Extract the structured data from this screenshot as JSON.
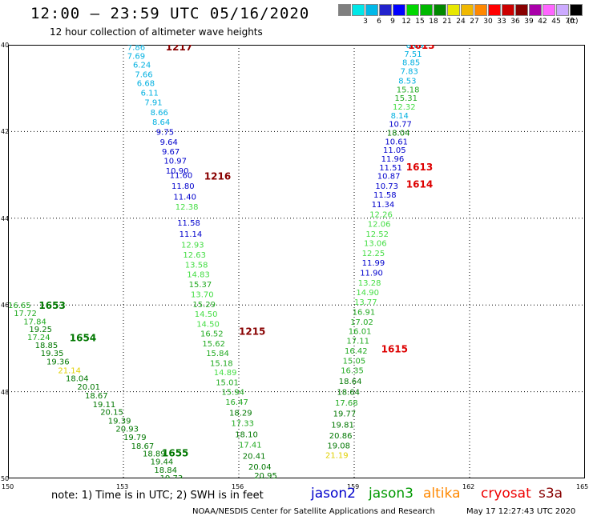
{
  "title": "12:00 – 23:59 UTC 05/16/2020",
  "subtitle": "12 hour collection of altimeter wave heights",
  "legend": {
    "colors": [
      "#7f7f7f",
      "#00e8e8",
      "#00b8e8",
      "#2222cc",
      "#0000ff",
      "#00d700",
      "#00b800",
      "#008800",
      "#e8e800",
      "#f0b800",
      "#ff8800",
      "#ff0000",
      "#cc0000",
      "#880000",
      "#aa00aa",
      "#ff66ff",
      "#ccaaff",
      "#000000"
    ],
    "values": [
      "3",
      "6",
      "9",
      "12",
      "15",
      "18",
      "21",
      "24",
      "27",
      "30",
      "33",
      "36",
      "39",
      "42",
      "45",
      "70"
    ],
    "unit": "(ft)"
  },
  "axes": {
    "lon_labels": [
      "150",
      "153",
      "156",
      "159",
      "162",
      "165"
    ],
    "lat_labels": [
      "40",
      "42",
      "44",
      "46",
      "48",
      "50"
    ]
  },
  "note": "note: 1) Time is in UTC; 2) SWH is in feet",
  "satellites": [
    {
      "name": "jason2",
      "color": "#0000cc"
    },
    {
      "name": "jason3",
      "color": "#009900"
    },
    {
      "name": "altika",
      "color": "#ff8800"
    },
    {
      "name": "cryosat",
      "color": "#ee0000"
    },
    {
      "name": "s3a",
      "color": "#880000"
    }
  ],
  "footer": "NOAA/NESDIS Center for Satellite Applications and Research",
  "timestamp": "May 17 12:27:43 UTC 2020",
  "tracks": [
    {
      "label": "1217",
      "label_lon": 154.1,
      "label_lat": 40.04,
      "label_color": "#880000",
      "color": "#00a0d0",
      "points": [
        [
          153.1,
          40.05,
          "7.86"
        ],
        [
          153.1,
          40.25,
          "7.69"
        ],
        [
          153.25,
          40.45,
          "6.24"
        ],
        [
          153.3,
          40.67,
          "7.66"
        ],
        [
          153.35,
          40.88,
          "6.68"
        ],
        [
          153.45,
          41.1,
          "6.11"
        ],
        [
          153.55,
          41.32,
          "7.91"
        ],
        [
          153.7,
          41.55,
          "8.66"
        ],
        [
          153.75,
          41.77,
          "8.64"
        ]
      ]
    },
    {
      "label": "",
      "label_lon": 0,
      "label_lat": 0,
      "label_color": "#000",
      "color": "#0000bb",
      "points": [
        [
          153.85,
          42.0,
          "9.75"
        ],
        [
          153.95,
          42.23,
          "9.64"
        ],
        [
          154.0,
          42.45,
          "9.67"
        ],
        [
          154.05,
          42.67,
          "10.97"
        ],
        [
          154.1,
          42.9,
          "10.90"
        ],
        [
          154.2,
          43.0,
          "11.60"
        ],
        [
          154.25,
          43.25,
          "11.80"
        ],
        [
          154.3,
          43.5,
          "11.40"
        ]
      ]
    },
    {
      "label": "1216",
      "label_lon": 155.1,
      "label_lat": 43.02,
      "label_color": "#880000",
      "color": "#55e055",
      "points": [
        [
          154.35,
          43.73,
          "12.38"
        ],
        [
          154.4,
          44.1,
          "11.58"
        ],
        [
          154.45,
          44.35,
          "11.14"
        ],
        [
          154.5,
          44.6,
          "12.93"
        ],
        [
          154.55,
          44.83,
          "12.63"
        ],
        [
          154.6,
          45.06,
          "13.58"
        ],
        [
          154.65,
          45.29,
          "14.83"
        ],
        [
          154.7,
          45.52,
          "15.37"
        ],
        [
          154.75,
          45.75,
          "13.70"
        ],
        [
          154.8,
          45.98,
          "15.29"
        ],
        [
          154.85,
          46.2,
          "14.50"
        ],
        [
          154.9,
          46.43,
          "14.50"
        ]
      ]
    },
    {
      "label": "1215",
      "label_lon": 156.0,
      "label_lat": 46.6,
      "label_color": "#880000",
      "color": "#22aa22",
      "points": [
        [
          155.0,
          46.65,
          "16.52"
        ],
        [
          155.05,
          46.88,
          "15.62"
        ],
        [
          155.15,
          47.1,
          "15.84"
        ],
        [
          155.25,
          47.33,
          "15.18"
        ],
        [
          155.35,
          47.55,
          "14.89"
        ],
        [
          155.4,
          47.78,
          "15.01"
        ],
        [
          155.55,
          48.0,
          "15.94"
        ],
        [
          155.65,
          48.23,
          "16.47"
        ],
        [
          155.75,
          48.48,
          "18.29"
        ],
        [
          155.8,
          48.72,
          "17.33"
        ],
        [
          155.9,
          48.98,
          "18.10"
        ],
        [
          156.0,
          49.22,
          "17.41"
        ],
        [
          156.1,
          49.47,
          "20.41"
        ],
        [
          156.25,
          49.72,
          "20.04"
        ],
        [
          156.4,
          49.93,
          "20.95"
        ]
      ]
    },
    {
      "label": "1653",
      "label_lon": 150.8,
      "label_lat": 46.0,
      "label_color": "#007700",
      "color": "#22aa22",
      "points": [
        [
          150.0,
          46.0,
          "16.65"
        ],
        [
          150.15,
          46.18,
          "17.72"
        ],
        [
          150.4,
          46.37,
          "17.84"
        ],
        [
          150.55,
          46.55,
          "19.25"
        ],
        [
          150.5,
          46.73,
          "17.24"
        ],
        [
          150.7,
          46.92,
          "18.85"
        ],
        [
          150.85,
          47.1,
          "19.35"
        ],
        [
          151.0,
          47.3,
          "19.36"
        ],
        [
          151.3,
          47.5,
          "21.14"
        ],
        [
          151.5,
          47.68,
          "18.04"
        ],
        [
          151.8,
          47.88,
          "20.01"
        ],
        [
          152.0,
          48.08,
          "18.67"
        ],
        [
          152.2,
          48.28,
          "19.11"
        ],
        [
          152.4,
          48.46,
          "20.15"
        ],
        [
          152.6,
          48.66,
          "19.39"
        ],
        [
          152.8,
          48.85,
          "20.93"
        ],
        [
          153.0,
          49.04,
          "19.79"
        ],
        [
          153.2,
          49.24,
          "18.67"
        ],
        [
          153.5,
          49.42,
          "18.89"
        ],
        [
          153.7,
          49.6,
          "19.44"
        ],
        [
          153.8,
          49.8,
          "18.84"
        ],
        [
          153.95,
          49.98,
          "19.73"
        ],
        [
          154.1,
          50.17,
          "19.09"
        ],
        [
          154.25,
          50.37,
          "22.15"
        ]
      ]
    },
    {
      "label": "1654",
      "label_lon": 151.6,
      "label_lat": 46.74,
      "label_color": "#007700",
      "color": "#22aa22",
      "points": []
    },
    {
      "label": "1655",
      "label_lon": 154.0,
      "label_lat": 49.4,
      "label_color": "#007700",
      "color": "#22aa22",
      "points": []
    },
    {
      "label": "1613",
      "label_lon": 160.4,
      "label_lat": 40.0,
      "label_color": "#dd0000",
      "color": "#00a0d0",
      "points": [
        [
          160.35,
          40.0,
          "8.89"
        ],
        [
          160.3,
          40.2,
          "7.51"
        ],
        [
          160.25,
          40.4,
          "8.85"
        ],
        [
          160.2,
          40.6,
          "7.83"
        ],
        [
          160.15,
          40.82,
          "8.53"
        ]
      ]
    },
    {
      "label": "",
      "label_lon": 0,
      "label_lat": 0,
      "label_color": "#000",
      "color": "#22aa22",
      "points": [
        [
          160.1,
          41.02,
          "15.18"
        ],
        [
          160.05,
          41.22,
          "15.31"
        ],
        [
          160.0,
          41.42,
          "12.32"
        ],
        [
          159.95,
          41.62,
          "8.14"
        ],
        [
          159.9,
          41.82,
          "10.77"
        ],
        [
          159.85,
          42.02,
          "18.04"
        ]
      ]
    },
    {
      "label": "1613",
      "label_lon": 160.35,
      "label_lat": 42.8,
      "label_color": "#dd0000",
      "color": "#0000bb",
      "points": [
        [
          159.8,
          42.22,
          "10.61"
        ],
        [
          159.75,
          42.42,
          "11.05"
        ],
        [
          159.7,
          42.62,
          "11.96"
        ],
        [
          159.65,
          42.82,
          "11.51"
        ],
        [
          159.6,
          43.02,
          "10.87"
        ],
        [
          159.55,
          43.25,
          "10.73"
        ],
        [
          159.5,
          43.45,
          "11.58"
        ],
        [
          159.45,
          43.67,
          "11.34"
        ]
      ]
    },
    {
      "label": "1614",
      "label_lon": 160.35,
      "label_lat": 43.2,
      "label_color": "#dd0000",
      "color": "#55e055",
      "points": [
        [
          159.4,
          43.9,
          "12.26"
        ],
        [
          159.35,
          44.12,
          "12.06"
        ],
        [
          159.3,
          44.35,
          "12.52"
        ],
        [
          159.25,
          44.57,
          "13.06"
        ],
        [
          159.2,
          44.8,
          "12.25"
        ]
      ]
    },
    {
      "label": "",
      "label_lon": 0,
      "label_lat": 0,
      "label_color": "#000",
      "color": "#0000bb",
      "points": [
        [
          159.2,
          45.02,
          "11.99"
        ],
        [
          159.15,
          45.25,
          "11.90"
        ]
      ]
    },
    {
      "label": "1615",
      "label_lon": 159.7,
      "label_lat": 47.0,
      "label_color": "#dd0000",
      "color": "#22aa22",
      "points": [
        [
          159.1,
          45.48,
          "13.28"
        ],
        [
          159.05,
          45.7,
          "14.90"
        ],
        [
          159.0,
          45.92,
          "13.77"
        ],
        [
          158.95,
          46.15,
          "16.91"
        ],
        [
          158.9,
          46.38,
          "17.02"
        ],
        [
          158.85,
          46.6,
          "16.01"
        ],
        [
          158.8,
          46.82,
          "17.11"
        ],
        [
          158.75,
          47.05,
          "16.42"
        ],
        [
          158.7,
          47.28,
          "15.05"
        ],
        [
          158.65,
          47.5,
          "16.35"
        ],
        [
          158.6,
          47.75,
          "18.64"
        ],
        [
          158.55,
          48.0,
          "18.64"
        ],
        [
          158.5,
          48.25,
          "17.68"
        ],
        [
          158.45,
          48.5,
          "19.77"
        ],
        [
          158.4,
          48.75,
          "19.81"
        ],
        [
          158.35,
          49.0,
          "20.86"
        ],
        [
          158.3,
          49.23,
          "19.08"
        ],
        [
          158.25,
          49.46,
          "21.19"
        ]
      ]
    }
  ]
}
